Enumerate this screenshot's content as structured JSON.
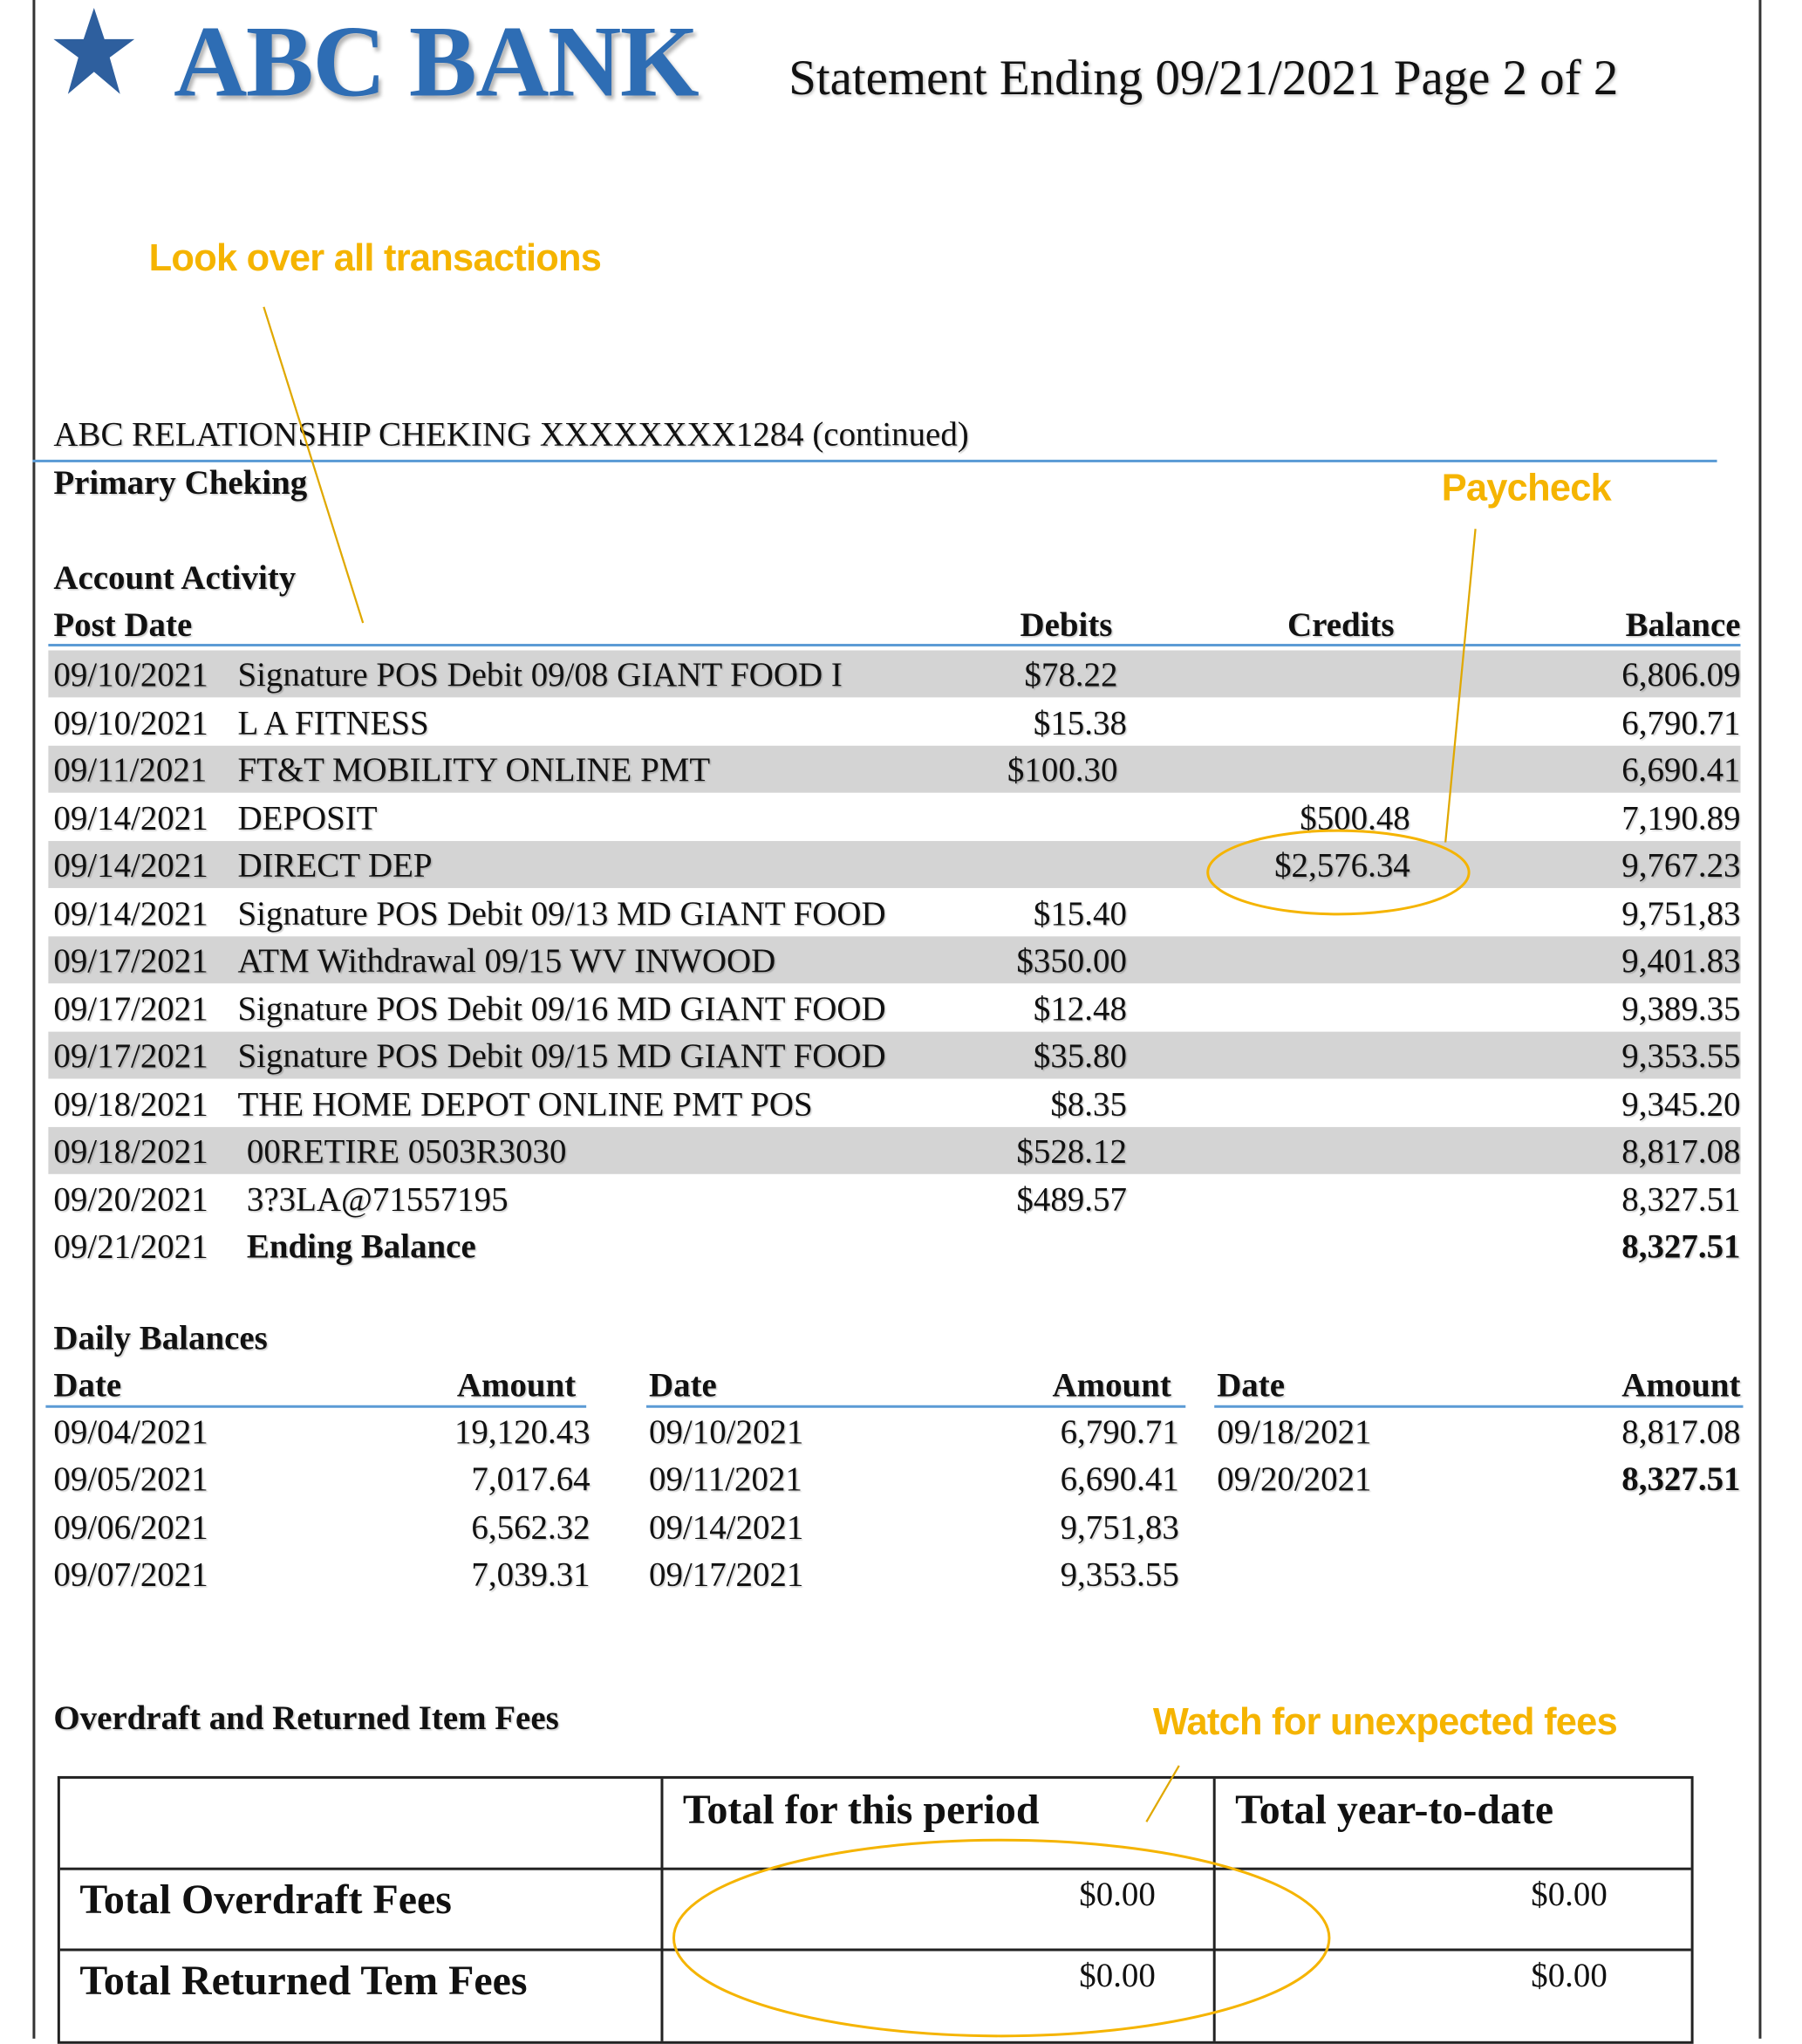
{
  "header": {
    "bank_name": "ABC BANK",
    "statement_line": "Statement Ending 09/21/2021 Page 2 of 2",
    "brand_color": "#2e6db4"
  },
  "annotations": {
    "transactions_note": "Look over all transactions",
    "paycheck_note": "Paycheck",
    "fees_note": "Watch for unexpected fees",
    "color": "#f5b400"
  },
  "account": {
    "title": "ABC RELATIONSHIP CHEKING XXXXXXXX1284 (continued)",
    "subtitle": "Primary Cheking"
  },
  "activity": {
    "heading": "Account Activity",
    "columns": {
      "post_date": "Post Date",
      "debits": "Debits",
      "credits": "Credits",
      "balance": "Balance"
    },
    "rows": [
      {
        "date": "09/10/2021",
        "description": "Signature POS Debit 09/08 GIANT FOOD I",
        "debit": "$78.22",
        "credit": "",
        "balance": "6,806.09"
      },
      {
        "date": "09/10/2021",
        "description": "L A FITNESS",
        "debit": "$15.38",
        "credit": "",
        "balance": "6,790.71"
      },
      {
        "date": "09/11/2021",
        "description": "FT&T MOBILITY ONLINE PMT",
        "debit": "$100.30",
        "credit": "",
        "balance": "6,690.41"
      },
      {
        "date": "09/14/2021",
        "description": "DEPOSIT",
        "debit": "",
        "credit": "$500.48",
        "balance": "7,190.89"
      },
      {
        "date": "09/14/2021",
        "description": "DIRECT DEP",
        "debit": "",
        "credit": "$2,576.34",
        "balance": "9,767.23"
      },
      {
        "date": "09/14/2021",
        "description": "Signature POS Debit 09/13 MD GIANT FOOD",
        "debit": "$15.40",
        "credit": "",
        "balance": "9,751,83"
      },
      {
        "date": "09/17/2021",
        "description": "ATM Withdrawal  09/15 WV INWOOD",
        "debit": "$350.00",
        "credit": "",
        "balance": "9,401.83"
      },
      {
        "date": "09/17/2021",
        "description": "Signature POS Debit 09/16 MD GIANT FOOD",
        "debit": "$12.48",
        "credit": "",
        "balance": "9,389.35"
      },
      {
        "date": "09/17/2021",
        "description": "Signature POS Debit 09/15 MD GIANT FOOD",
        "debit": "$35.80",
        "credit": "",
        "balance": "9,353.55"
      },
      {
        "date": "09/18/2021",
        "description": "THE HOME DEPOT ONLINE PMT POS",
        "debit": "$8.35",
        "credit": "",
        "balance": "9,345.20"
      },
      {
        "date": "09/18/2021",
        "description": "00RETIRE 0503R3030",
        "debit": "$528.12",
        "credit": "",
        "balance": "8,817.08"
      },
      {
        "date": "09/20/2021",
        "description": "3?3LA@71557195",
        "debit": "$489.57",
        "credit": "",
        "balance": "8,327.51"
      }
    ],
    "ending": {
      "date": "09/21/2021",
      "label": "Ending Balance",
      "balance": "8,327.51"
    }
  },
  "daily_balances": {
    "heading": "Daily Balances",
    "date_header": "Date",
    "amount_header": "Amount",
    "columns": [
      [
        {
          "date": "09/04/2021",
          "amount": "19,120.43"
        },
        {
          "date": "09/05/2021",
          "amount": "7,017.64"
        },
        {
          "date": "09/06/2021",
          "amount": "6,562.32"
        },
        {
          "date": "09/07/2021",
          "amount": "7,039.31"
        }
      ],
      [
        {
          "date": "09/10/2021",
          "amount": "6,790.71"
        },
        {
          "date": "09/11/2021",
          "amount": "6,690.41"
        },
        {
          "date": "09/14/2021",
          "amount": "9,751,83"
        },
        {
          "date": "09/17/2021",
          "amount": "9,353.55"
        }
      ],
      [
        {
          "date": "09/18/2021",
          "amount": "8,817.08"
        },
        {
          "date": "09/20/2021",
          "amount": "8,327.51"
        }
      ]
    ]
  },
  "fees": {
    "heading": "Overdraft and Returned Item Fees",
    "col_period": "Total for this period",
    "col_ytd": "Total year-to-date",
    "rows": [
      {
        "label": "Total Overdraft Fees",
        "period": "$0.00",
        "ytd": "$0.00"
      },
      {
        "label": "Total Returned Tem Fees",
        "period": "$0.00",
        "ytd": "$0.00"
      }
    ]
  }
}
